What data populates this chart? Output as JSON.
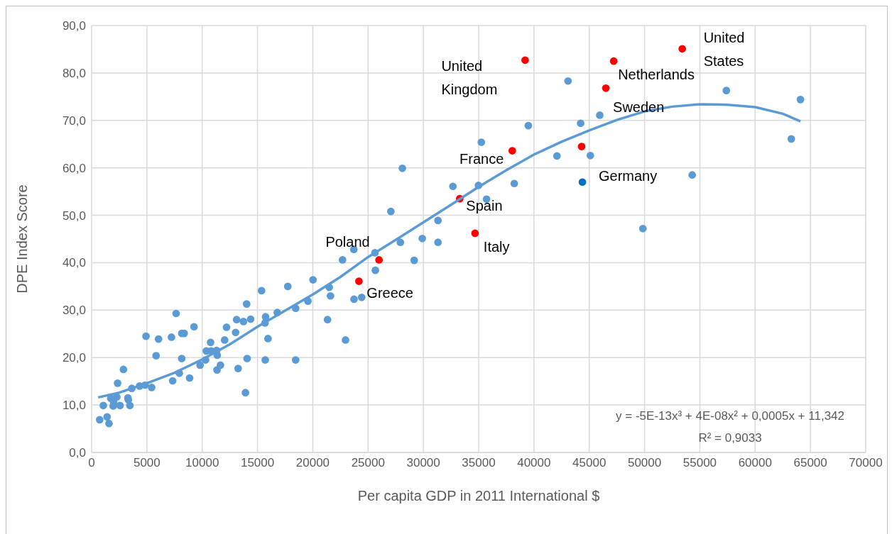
{
  "chart_data": {
    "type": "scatter",
    "xlabel": "Per capita GDP in 2011 International $",
    "ylabel": "DPE Index Score",
    "xlim": [
      0,
      70000
    ],
    "xticks": [
      0,
      5000,
      10000,
      15000,
      20000,
      25000,
      30000,
      35000,
      40000,
      45000,
      50000,
      55000,
      60000,
      65000,
      70000
    ],
    "ylim": [
      0,
      90
    ],
    "yticks": [
      {
        "value": 0,
        "label": "0,0"
      },
      {
        "value": 10,
        "label": "10,0"
      },
      {
        "value": 20,
        "label": "20,0"
      },
      {
        "value": 30,
        "label": "30,0"
      },
      {
        "value": 40,
        "label": "40,0"
      },
      {
        "value": 50,
        "label": "50,0"
      },
      {
        "value": 60,
        "label": "60,0"
      },
      {
        "value": 70,
        "label": "70,0"
      },
      {
        "value": 80,
        "label": "80,0"
      },
      {
        "value": 90,
        "label": "90,0"
      }
    ],
    "grid": true,
    "marker": "circle",
    "series": [
      {
        "color": "#5b9bd5",
        "x": [
          730,
          1400,
          1570,
          1060,
          1950,
          1730,
          2280,
          1990,
          2570,
          2350,
          2880,
          3280,
          3320,
          3460,
          3630,
          4340,
          4830,
          5430,
          4920,
          6050,
          5830,
          7330,
          7220,
          7640,
          7930,
          8150,
          8150,
          8370,
          8860,
          9260,
          9810,
          10300,
          10370,
          10810,
          11360,
          11300,
          10760,
          11340,
          11650,
          12030,
          12200,
          13020,
          13250,
          13110,
          13730,
          14020,
          14380,
          14060,
          13910,
          15370,
          15730,
          15680,
          15950,
          15700,
          16790,
          17740,
          18450,
          18450,
          19560,
          20020,
          21490,
          21600,
          23730,
          24420,
          21330,
          22960,
          28100,
          32670,
          34980,
          38220,
          35710,
          27060,
          31320,
          27920,
          29900,
          31320,
          23710,
          22690,
          25620,
          29170,
          25660,
          43080,
          57400,
          64100,
          39490,
          44220,
          45950,
          35240,
          42080,
          45100,
          63270,
          54310,
          49850
        ],
        "values": [
          6.9,
          7.5,
          6.1,
          9.9,
          9.8,
          11.4,
          11.7,
          10.7,
          9.9,
          14.6,
          17.5,
          11.5,
          11.1,
          9.9,
          13.5,
          14.0,
          14.2,
          13.7,
          24.5,
          23.9,
          20.4,
          15.1,
          24.3,
          29.3,
          16.7,
          19.8,
          25.1,
          25.1,
          15.7,
          26.5,
          18.4,
          19.5,
          21.4,
          21.4,
          20.5,
          21.5,
          23.2,
          17.4,
          18.4,
          23.7,
          26.4,
          25.3,
          17.7,
          28.0,
          27.6,
          31.3,
          28.1,
          19.8,
          12.6,
          34.1,
          28.6,
          27.3,
          24.0,
          19.5,
          29.5,
          35.0,
          30.4,
          19.5,
          31.9,
          36.4,
          34.8,
          33.0,
          32.3,
          32.7,
          28.0,
          23.7,
          59.9,
          56.1,
          56.3,
          56.7,
          53.4,
          50.8,
          48.9,
          44.3,
          45.1,
          44.3,
          42.8,
          40.6,
          42.1,
          40.5,
          38.4,
          78.3,
          76.3,
          74.4,
          68.9,
          69.4,
          71.1,
          65.4,
          62.5,
          62.6,
          66.1,
          58.5,
          47.2
        ]
      },
      {
        "color": "#0070c0",
        "x": [
          44380
        ],
        "values": [
          57.0
        ]
      },
      {
        "color": "#ff0000",
        "x": [
          39200,
          47210,
          46500,
          53410,
          38040,
          44310,
          33290,
          34670,
          25990,
          24170
        ],
        "values": [
          82.7,
          82.5,
          76.8,
          85.1,
          63.6,
          64.5,
          53.5,
          46.2,
          40.6,
          36.1
        ]
      },
      {
        "type": "line",
        "color": "#5b9bd5",
        "marker": "none",
        "line_style": "solid",
        "x": [
          590,
          2500,
          5000,
          7500,
          10000,
          12500,
          15000,
          17500,
          20000,
          22500,
          25000,
          27500,
          30000,
          32500,
          35000,
          37500,
          40000,
          42500,
          45000,
          47500,
          50000,
          52500,
          55000,
          57500,
          60000,
          62500,
          64100
        ],
        "values": [
          11.6,
          12.6,
          14.6,
          16.8,
          19.6,
          22.8,
          26.5,
          29.9,
          33.3,
          37.0,
          41.2,
          44.8,
          48.5,
          52.2,
          56.0,
          59.5,
          62.8,
          65.5,
          67.9,
          70.1,
          71.9,
          72.9,
          73.4,
          73.3,
          72.8,
          71.4,
          69.8
        ]
      }
    ],
    "annotations": [
      {
        "text": "United Kingdom",
        "x": 39200,
        "y": 82.7
      },
      {
        "text": "Netherlands",
        "x": 47210,
        "y": 82.5
      },
      {
        "text": "Sweden",
        "x": 46500,
        "y": 76.8
      },
      {
        "text": "United States",
        "x": 53410,
        "y": 85.1
      },
      {
        "text": "France",
        "x": 38040,
        "y": 63.6
      },
      {
        "text": "Germany",
        "x": 44310,
        "y": 64.5
      },
      {
        "text": "Spain",
        "x": 33290,
        "y": 53.5
      },
      {
        "text": "Italy",
        "x": 34670,
        "y": 46.2
      },
      {
        "text": "Poland",
        "x": 25990,
        "y": 40.6
      },
      {
        "text": "Greece",
        "x": 24170,
        "y": 36.1
      },
      "y = -5E-13x³ + 4E-08x² + 0,0005x + 11,342",
      "R² = 0,9033"
    ]
  }
}
